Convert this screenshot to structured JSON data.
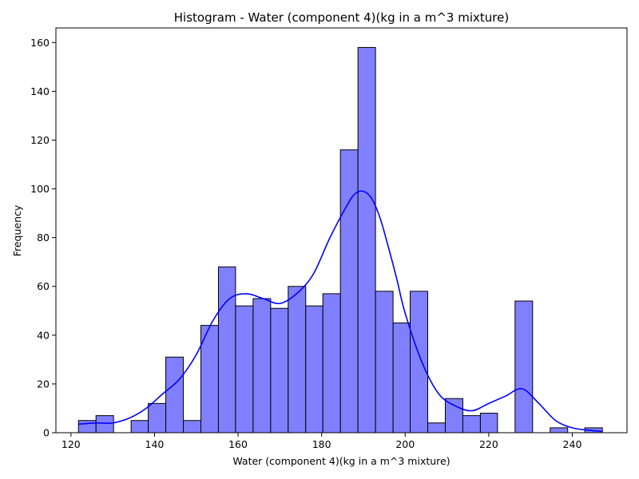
{
  "chart_data": {
    "type": "bar",
    "title": "Histogram - Water  (component 4)(kg in a m^3 mixture)",
    "xlabel": "Water  (component 4)(kg in a m^3 mixture)",
    "ylabel": "Frequency",
    "xlim": [
      116.4,
      253.1
    ],
    "ylim": [
      0,
      166
    ],
    "xticks": [
      120,
      140,
      160,
      180,
      200,
      220,
      240
    ],
    "yticks": [
      0,
      20,
      40,
      60,
      80,
      100,
      120,
      140,
      160
    ],
    "bin_edges": [
      121.8,
      126.0,
      130.2,
      134.4,
      138.5,
      142.7,
      146.9,
      151.1,
      155.3,
      159.4,
      163.6,
      167.8,
      172.0,
      176.2,
      180.3,
      184.5,
      188.7,
      192.9,
      197.1,
      201.2,
      205.4,
      209.6,
      213.8,
      218.0,
      222.1,
      226.3,
      230.5,
      234.7,
      238.9,
      243.0,
      247.2
    ],
    "counts": [
      5,
      7,
      0,
      5,
      12,
      31,
      5,
      44,
      68,
      52,
      55,
      51,
      60,
      52,
      57,
      116,
      158,
      58,
      45,
      58,
      4,
      14,
      7,
      8,
      0,
      54,
      0,
      2,
      0,
      2
    ],
    "bar_color": "#8080ff",
    "kde": {
      "color": "#0000ff",
      "x": [
        121.8,
        126.0,
        130.0,
        134.0,
        138.0,
        142.0,
        146.0,
        150.0,
        154.0,
        158.0,
        162.0,
        166.0,
        170.0,
        174.0,
        178.0,
        182.0,
        186.0,
        188.0,
        190.0,
        192.0,
        194.0,
        196.0,
        198.0,
        200.0,
        204.0,
        208.0,
        212.0,
        216.0,
        220.0,
        224.0,
        228.0,
        232.0,
        236.0,
        240.0,
        244.0,
        247.2
      ],
      "y": [
        3.5,
        4,
        4,
        6,
        10,
        16,
        22,
        32,
        46,
        55,
        57,
        55,
        53,
        57,
        65,
        80,
        93,
        98,
        99,
        96,
        88,
        76,
        63,
        49,
        29,
        16,
        11,
        9,
        12,
        15,
        18,
        12,
        5,
        2,
        1,
        0.5
      ]
    }
  }
}
